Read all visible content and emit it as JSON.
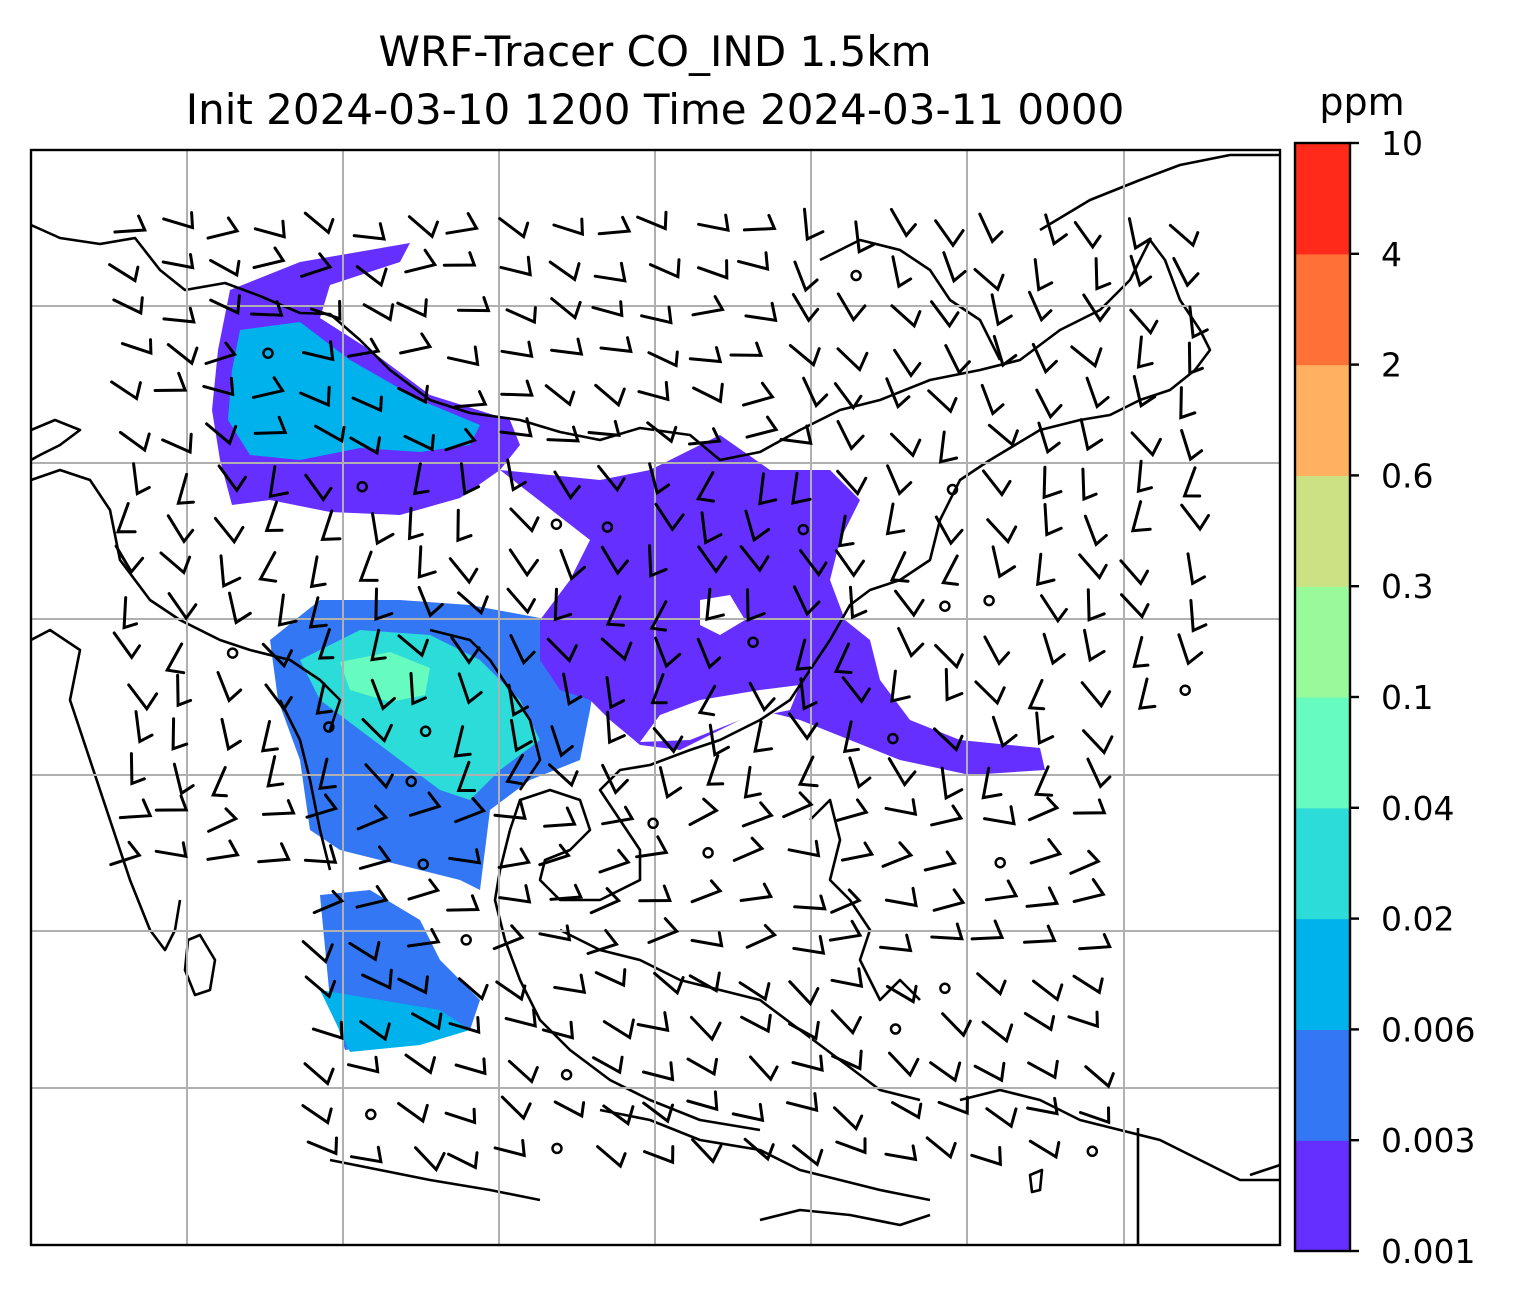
{
  "chart_data": {
    "type": "heatmap",
    "title_line1": "WRF-Tracer CO_IND 1.5km",
    "title_line2": "Init 2024-03-10 1200 Time 2024-03-11 0000",
    "xlabel": "",
    "ylabel": "",
    "grid": true,
    "colorbar": {
      "label": "ppm",
      "placement": "right",
      "levels": [
        "0.001",
        "0.003",
        "0.006",
        "0.02",
        "0.04",
        "0.1",
        "0.3",
        "0.6",
        "2",
        "4",
        "10"
      ],
      "colors": [
        "#6530ff",
        "#3377f4",
        "#00b2ec",
        "#2cdcd8",
        "#66fbbf",
        "#99fa99",
        "#cce184",
        "#ffb060",
        "#ff7136",
        "#ff2a19"
      ]
    },
    "plumes": [
      {
        "name": "northwest",
        "level_index": 0
      },
      {
        "name": "northwest-core",
        "level_index": 2
      },
      {
        "name": "south-asia",
        "level_index": 1
      },
      {
        "name": "south-asia-core",
        "level_index": 3
      },
      {
        "name": "south-asia-peak",
        "level_index": 4
      },
      {
        "name": "east",
        "level_index": 0
      },
      {
        "name": "southern-strip",
        "level_index": 2
      }
    ]
  }
}
